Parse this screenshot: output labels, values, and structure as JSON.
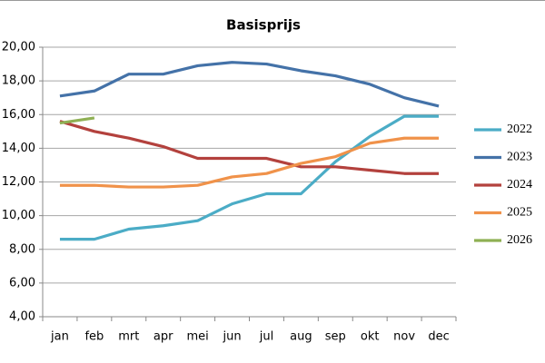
{
  "chart_data": {
    "type": "line",
    "title": "Basisprijs",
    "categories": [
      "jan",
      "feb",
      "mrt",
      "apr",
      "mei",
      "jun",
      "jul",
      "aug",
      "sep",
      "okt",
      "nov",
      "dec"
    ],
    "series": [
      {
        "name": "2022",
        "color": "#4bacc6",
        "values": [
          8.6,
          8.6,
          9.2,
          9.4,
          9.7,
          10.7,
          11.3,
          11.3,
          13.2,
          14.7,
          15.9,
          15.9
        ]
      },
      {
        "name": "2023",
        "color": "#4472a8",
        "values": [
          17.1,
          17.4,
          18.4,
          18.4,
          18.9,
          19.1,
          19.0,
          18.6,
          18.3,
          17.8,
          17.0,
          16.5
        ]
      },
      {
        "name": "2024",
        "color": "#b3413d",
        "values": [
          15.6,
          15.0,
          14.6,
          14.1,
          13.4,
          13.4,
          13.4,
          12.9,
          12.9,
          12.7,
          12.5,
          12.5
        ]
      },
      {
        "name": "2025",
        "color": "#f0924a",
        "values": [
          11.8,
          11.8,
          11.7,
          11.7,
          11.8,
          12.3,
          12.5,
          13.1,
          13.5,
          14.3,
          14.6,
          14.6
        ]
      },
      {
        "name": "2026",
        "color": "#8fb054",
        "values": [
          15.5,
          15.8,
          null,
          null,
          null,
          null,
          null,
          null,
          null,
          null,
          null,
          null
        ]
      }
    ],
    "ylim": [
      4,
      20
    ],
    "yticks": [
      {
        "value": 4,
        "label": "4,00"
      },
      {
        "value": 6,
        "label": "6,00"
      },
      {
        "value": 8,
        "label": "8,00"
      },
      {
        "value": 10,
        "label": "10,00"
      },
      {
        "value": 12,
        "label": "12,00"
      },
      {
        "value": 14,
        "label": "14,00"
      },
      {
        "value": 16,
        "label": "16,00"
      },
      {
        "value": 18,
        "label": "18,00"
      },
      {
        "value": 20,
        "label": "20,00"
      }
    ],
    "grid": true,
    "legend": "right"
  }
}
